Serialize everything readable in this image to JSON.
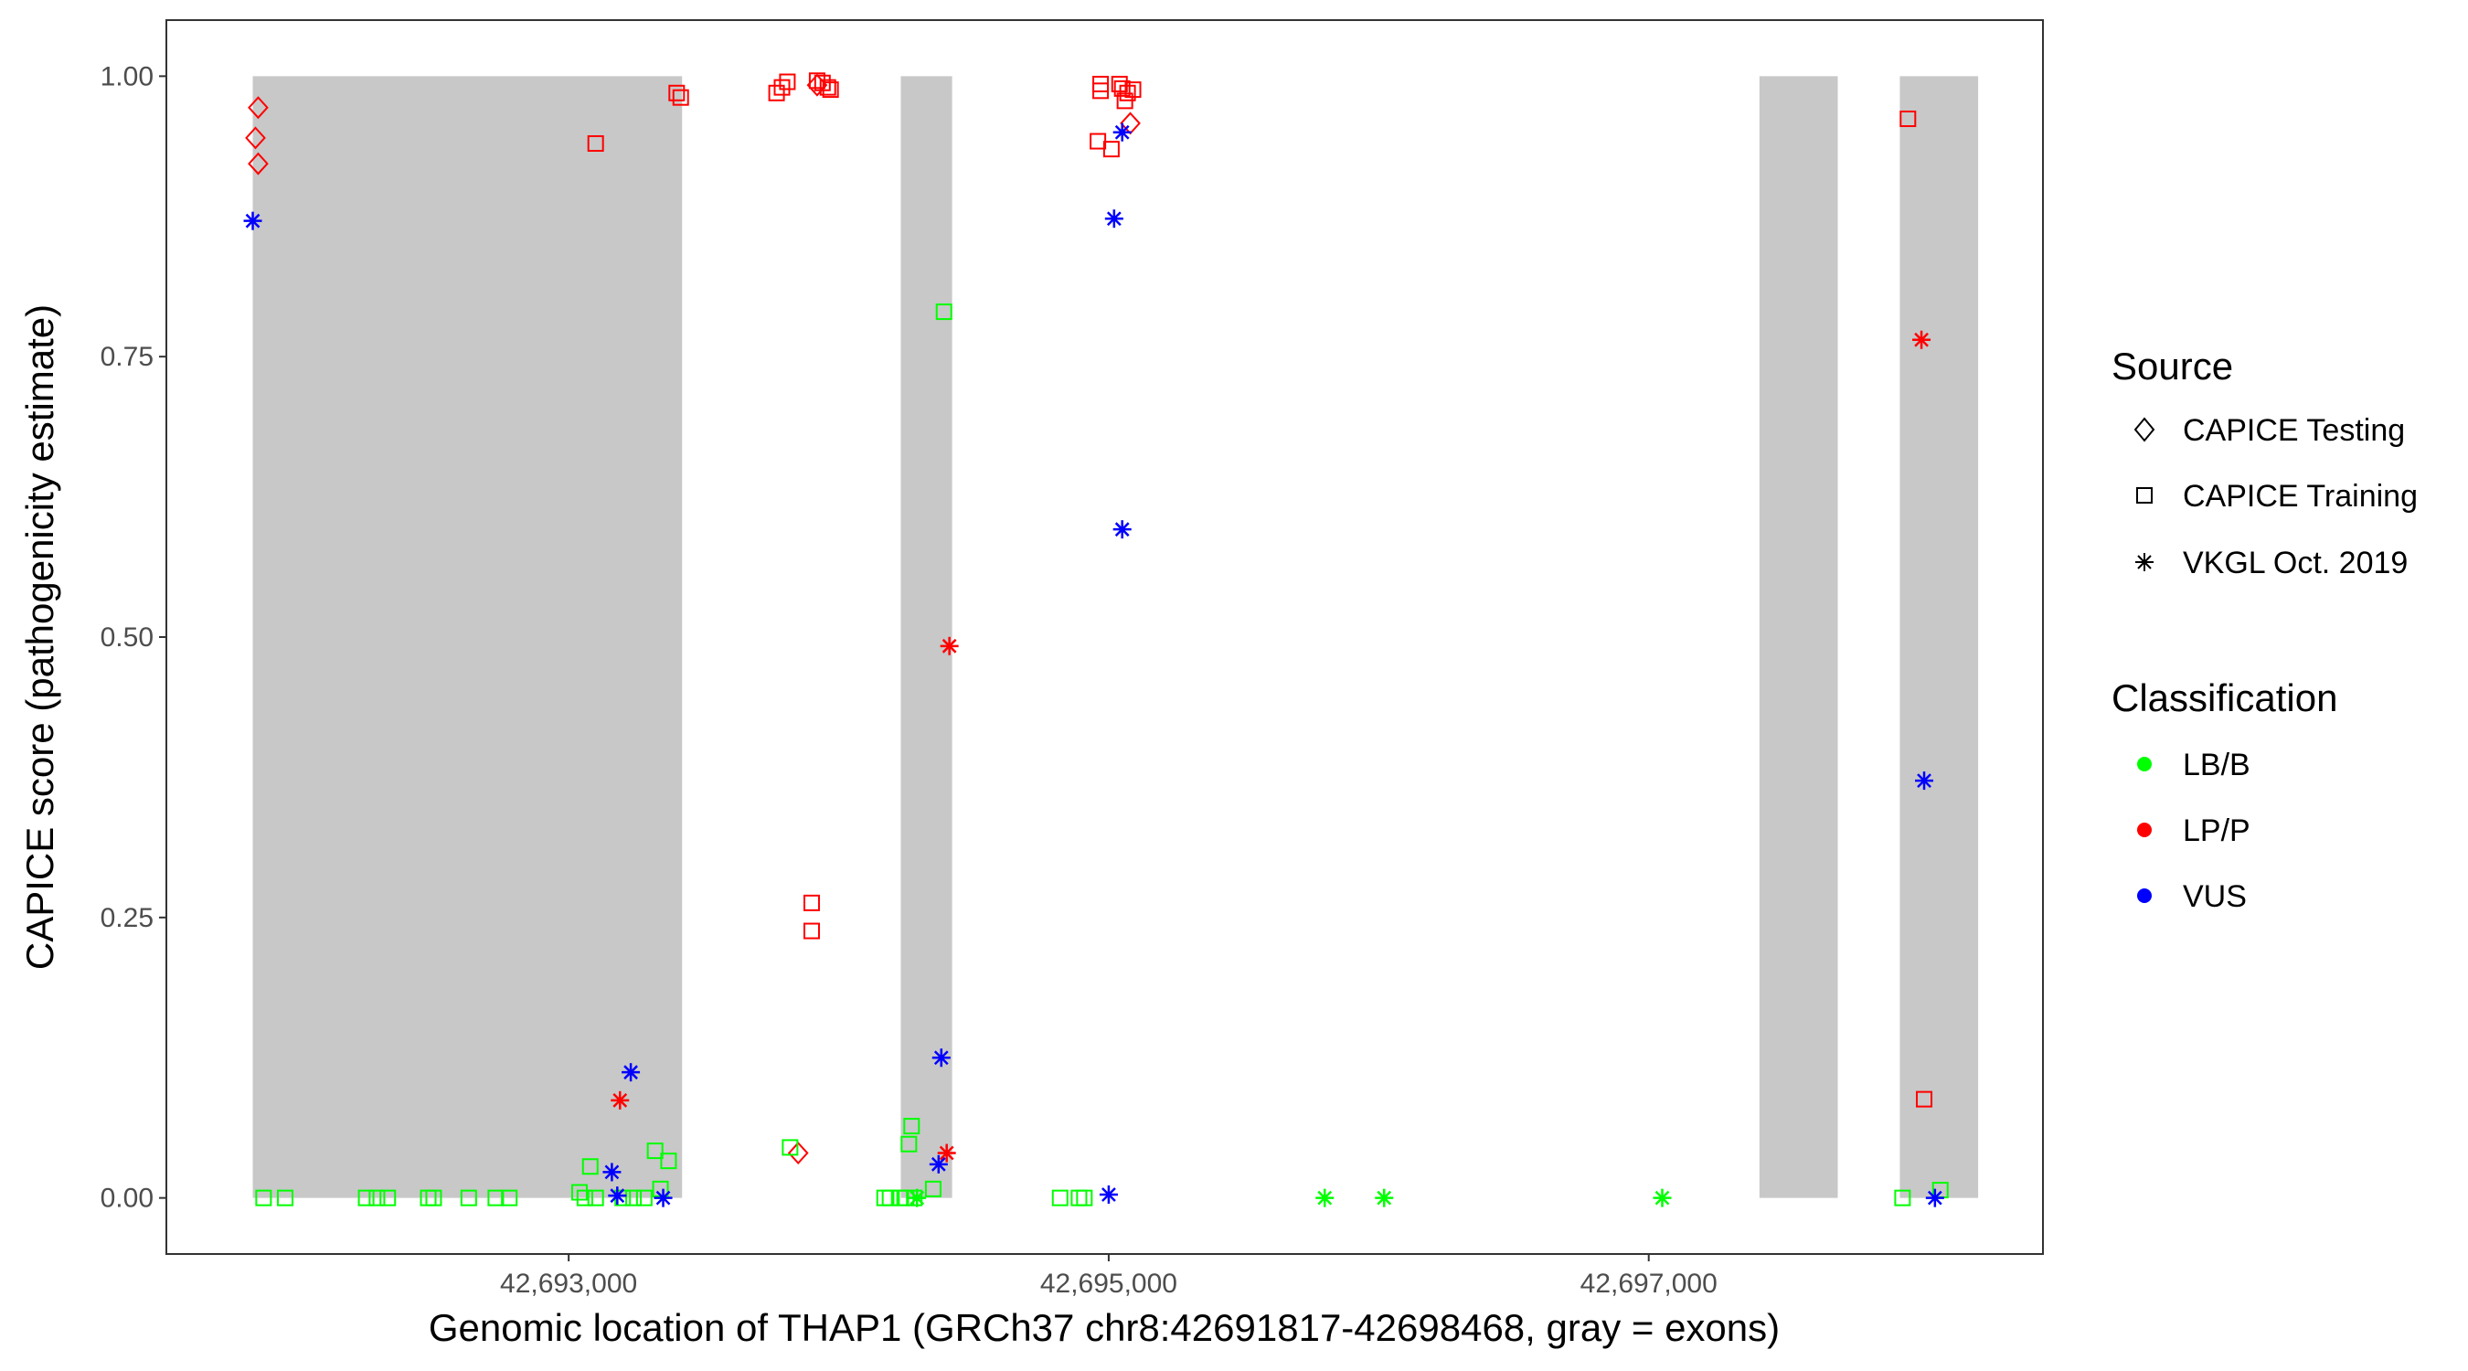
{
  "chart_data": {
    "type": "scatter",
    "xlabel": "Genomic location of THAP1 (GRCh37 chr8:42691817-42698468, gray = exons)",
    "ylabel": "CAPICE score (pathogenicity estimate)",
    "xlim": [
      42691510,
      42698460
    ],
    "ylim": [
      -0.05,
      1.05
    ],
    "x_ticks": [
      {
        "value": 42693000,
        "label": "42,693,000"
      },
      {
        "value": 42695000,
        "label": "42,695,000"
      },
      {
        "value": 42697000,
        "label": "42,697,000"
      }
    ],
    "y_ticks": [
      {
        "value": 0.0,
        "label": "0.00"
      },
      {
        "value": 0.25,
        "label": "0.25"
      },
      {
        "value": 0.5,
        "label": "0.50"
      },
      {
        "value": 0.75,
        "label": "0.75"
      },
      {
        "value": 1.0,
        "label": "1.00"
      }
    ],
    "exons": [
      {
        "start": 42691830,
        "end": 42693420
      },
      {
        "start": 42694230,
        "end": 42694420
      },
      {
        "start": 42697410,
        "end": 42697700
      },
      {
        "start": 42697930,
        "end": 42698220
      }
    ],
    "exon_color": "#c8c8c8",
    "legend_source": {
      "title": "Source",
      "items": [
        {
          "label": "CAPICE Testing",
          "shape": "diamond"
        },
        {
          "label": "CAPICE Training",
          "shape": "square"
        },
        {
          "label": "VKGL Oct. 2019",
          "shape": "asterisk"
        }
      ]
    },
    "legend_classification": {
      "title": "Classification",
      "items": [
        {
          "label": "LB/B",
          "color": "#00ff00"
        },
        {
          "label": "LP/P",
          "color": "#ff0000"
        },
        {
          "label": "VUS",
          "color": "#0000ff"
        }
      ]
    },
    "series": [
      {
        "source": "CAPICE Testing",
        "classification": "LP/P",
        "points": [
          [
            42691850,
            0.972
          ],
          [
            42691840,
            0.945
          ],
          [
            42691850,
            0.922
          ],
          [
            42693920,
            0.992
          ],
          [
            42693850,
            0.04
          ],
          [
            42695080,
            0.958
          ]
        ]
      },
      {
        "source": "CAPICE Training",
        "classification": "LP/P",
        "points": [
          [
            42693100,
            0.94
          ],
          [
            42693400,
            0.985
          ],
          [
            42693415,
            0.981
          ],
          [
            42693770,
            0.985
          ],
          [
            42693790,
            0.99
          ],
          [
            42693810,
            0.995
          ],
          [
            42693920,
            0.996
          ],
          [
            42693940,
            0.994
          ],
          [
            42693960,
            0.99
          ],
          [
            42693970,
            0.988
          ],
          [
            42693900,
            0.263
          ],
          [
            42693900,
            0.238
          ],
          [
            42694970,
            0.993
          ],
          [
            42694970,
            0.987
          ],
          [
            42695040,
            0.993
          ],
          [
            42695050,
            0.989
          ],
          [
            42695070,
            0.985
          ],
          [
            42695090,
            0.988
          ],
          [
            42694960,
            0.942
          ],
          [
            42695010,
            0.935
          ],
          [
            42695060,
            0.978
          ],
          [
            42697960,
            0.962
          ],
          [
            42698020,
            0.088
          ]
        ]
      },
      {
        "source": "CAPICE Training",
        "classification": "LB/B",
        "points": [
          [
            42691870,
            0.0
          ],
          [
            42691950,
            0.0
          ],
          [
            42692250,
            0.0
          ],
          [
            42692290,
            0.0
          ],
          [
            42692330,
            0.0
          ],
          [
            42692480,
            0.0
          ],
          [
            42692500,
            0.0
          ],
          [
            42692630,
            0.0
          ],
          [
            42692730,
            0.0
          ],
          [
            42692780,
            0.0
          ],
          [
            42693040,
            0.005
          ],
          [
            42693060,
            0.0
          ],
          [
            42693080,
            0.028
          ],
          [
            42693100,
            0.0
          ],
          [
            42693200,
            0.0
          ],
          [
            42693240,
            0.0
          ],
          [
            42693280,
            0.0
          ],
          [
            42693320,
            0.042
          ],
          [
            42693340,
            0.008
          ],
          [
            42693370,
            0.033
          ],
          [
            42693820,
            0.045
          ],
          [
            42694170,
            0.0
          ],
          [
            42694190,
            0.0
          ],
          [
            42694230,
            0.0
          ],
          [
            42694250,
            0.0
          ],
          [
            42694280,
            0.0
          ],
          [
            42694260,
            0.048
          ],
          [
            42694270,
            0.064
          ],
          [
            42694350,
            0.008
          ],
          [
            42694390,
            0.79
          ],
          [
            42694820,
            0.0
          ],
          [
            42694890,
            0.0
          ],
          [
            42694910,
            0.0
          ],
          [
            42697940,
            0.0
          ],
          [
            42698080,
            0.007
          ]
        ]
      },
      {
        "source": "VKGL Oct. 2019",
        "classification": "VUS",
        "points": [
          [
            42691830,
            0.871
          ],
          [
            42693160,
            0.023
          ],
          [
            42693180,
            0.002
          ],
          [
            42693230,
            0.112
          ],
          [
            42693350,
            0.0
          ],
          [
            42694380,
            0.125
          ],
          [
            42694370,
            0.03
          ],
          [
            42695000,
            0.003
          ],
          [
            42695020,
            0.873
          ],
          [
            42695050,
            0.596
          ],
          [
            42695050,
            0.95
          ],
          [
            42698020,
            0.372
          ],
          [
            42698060,
            0.0
          ]
        ]
      },
      {
        "source": "VKGL Oct. 2019",
        "classification": "LP/P",
        "points": [
          [
            42693190,
            0.087
          ],
          [
            42694410,
            0.492
          ],
          [
            42694400,
            0.04
          ],
          [
            42698010,
            0.765
          ]
        ]
      },
      {
        "source": "VKGL Oct. 2019",
        "classification": "LB/B",
        "points": [
          [
            42694290,
            0.0
          ],
          [
            42695800,
            0.0
          ],
          [
            42696020,
            0.0
          ],
          [
            42697050,
            0.0
          ]
        ]
      }
    ]
  }
}
